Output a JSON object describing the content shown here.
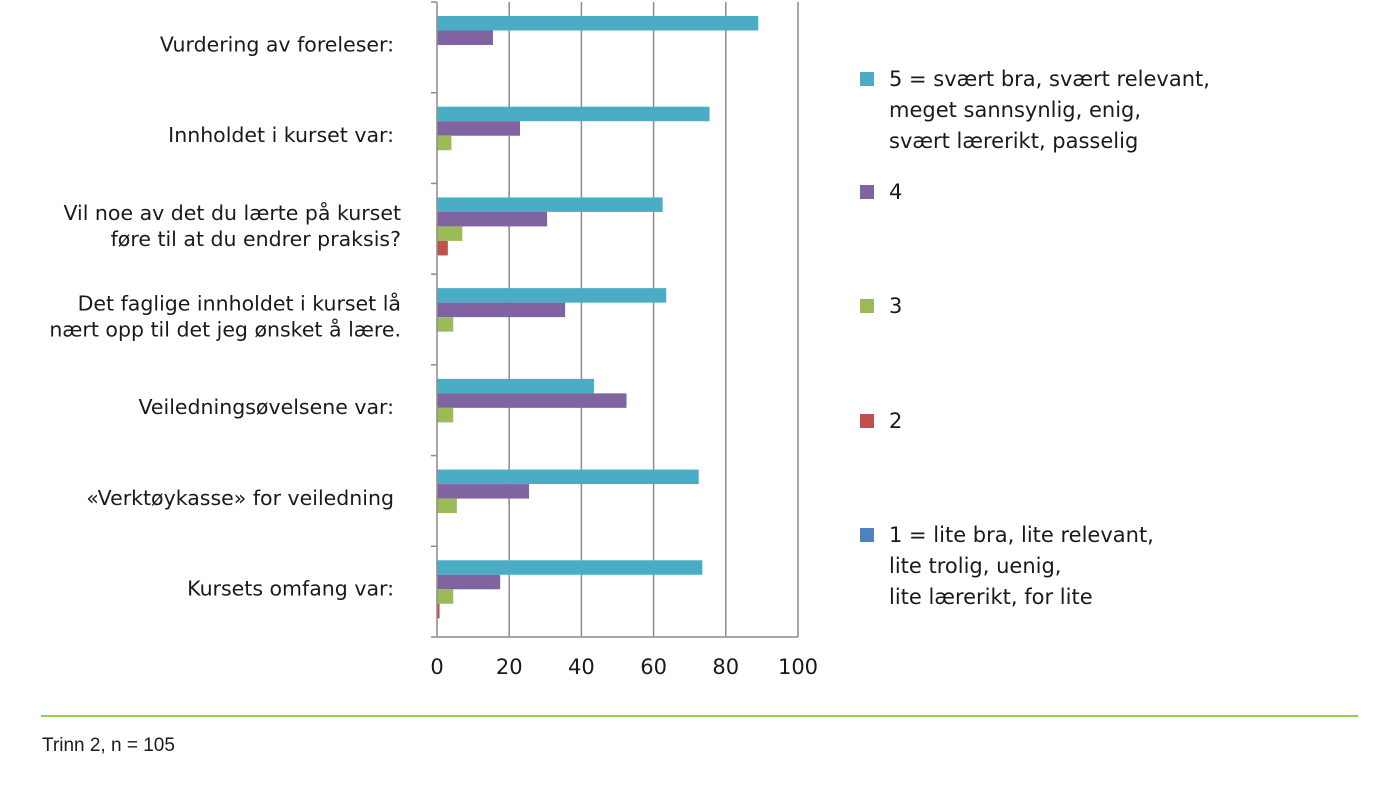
{
  "chart_data": {
    "type": "bar",
    "orientation": "horizontal",
    "categories": [
      "Vurdering av foreleser:",
      "Innholdet i kurset var:",
      "Vil noe av det du lærte på kurset\nføre til at du endrer praksis?",
      "Det faglige innholdet i kurset lå\nnært opp til det jeg ønsket å lære.",
      "Veiledningsøvelsene var:",
      "«Verktøykasse» for veiledning",
      "Kursets omfang var:"
    ],
    "series": [
      {
        "name": "5 = svært bra, svært relevant,\nmeget sannsynlig, enig,\nsvært lærerikt, passelig",
        "color": "#4BACC6",
        "values": [
          89,
          75.5,
          62.5,
          63.5,
          43.5,
          72.5,
          73.5
        ]
      },
      {
        "name": "4",
        "color": "#8064A2",
        "values": [
          15.5,
          23,
          30.5,
          35.5,
          52.5,
          25.5,
          17.5
        ]
      },
      {
        "name": "3",
        "color": "#9BBB59",
        "values": [
          0,
          4,
          7,
          4.5,
          4.5,
          5.5,
          4.5
        ]
      },
      {
        "name": "2",
        "color": "#C0504D",
        "values": [
          0,
          0,
          3,
          0,
          0,
          0,
          0.7
        ]
      },
      {
        "name": "1 = lite bra, lite relevant,\nlite trolig, uenig,\nlite lærerikt, for lite",
        "color": "#4F81BD",
        "values": [
          0,
          0,
          0,
          0,
          0,
          0,
          0
        ]
      }
    ],
    "xlim": [
      0,
      100
    ],
    "xticks": [
      0,
      20,
      40,
      60,
      80,
      100
    ],
    "grid": true,
    "legend_position": "right",
    "title": "",
    "xlabel": "",
    "ylabel": ""
  },
  "footer": {
    "note": "Trinn 2, n = 105",
    "rule_color": "#92D050"
  },
  "colors": {
    "gridline": "#8c8c8c",
    "axis": "#8c8c8c"
  }
}
